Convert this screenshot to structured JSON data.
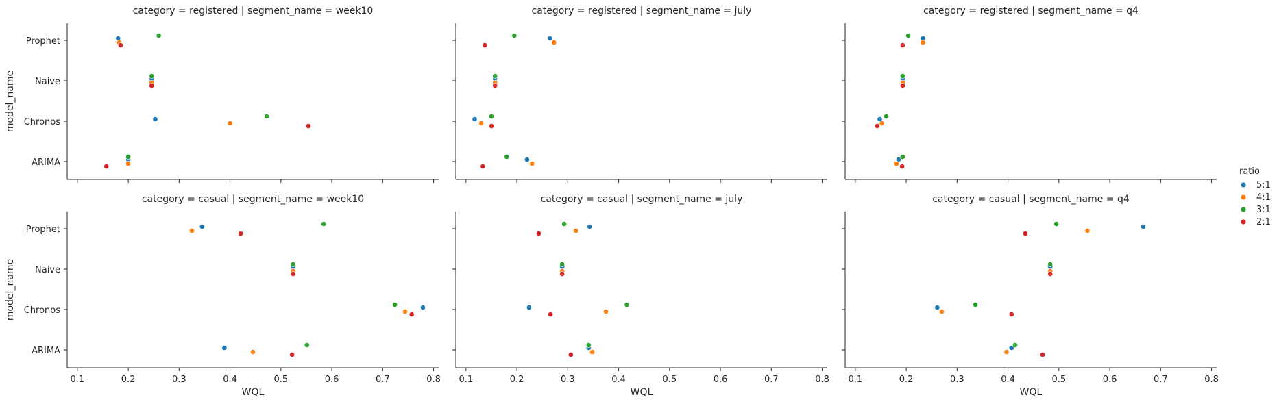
{
  "chart_data": {
    "type": "scatter",
    "layout": "facet-grid",
    "xlabel": "WQL",
    "ylabel": "model_name",
    "xlim": [
      0.08,
      0.81
    ],
    "xticks": [
      0.1,
      0.2,
      0.3,
      0.4,
      0.5,
      0.6,
      0.7,
      0.8
    ],
    "xtick_labels": [
      "0.1",
      "0.2",
      "0.3",
      "0.4",
      "0.5",
      "0.6",
      "0.7",
      "0.8"
    ],
    "categories": [
      "Prophet",
      "Naive",
      "Chronos",
      "ARIMA"
    ],
    "legend": {
      "title": "ratio",
      "placement": "right",
      "entries": [
        {
          "name": "5:1",
          "color": "#1f77b4"
        },
        {
          "name": "4:1",
          "color": "#ff7f0e"
        },
        {
          "name": "3:1",
          "color": "#2ca02c"
        },
        {
          "name": "2:1",
          "color": "#d62728"
        }
      ]
    },
    "panels": [
      {
        "title": "category = registered | segment_name = week10",
        "points": {
          "Prophet": {
            "5:1": 0.18,
            "4:1": 0.182,
            "3:1": 0.26,
            "2:1": 0.185
          },
          "Naive": {
            "5:1": 0.246,
            "4:1": 0.246,
            "3:1": 0.246,
            "2:1": 0.246
          },
          "Chronos": {
            "5:1": 0.253,
            "4:1": 0.4,
            "3:1": 0.472,
            "2:1": 0.554
          },
          "ARIMA": {
            "5:1": 0.2,
            "4:1": 0.2,
            "3:1": 0.2,
            "2:1": 0.157
          }
        }
      },
      {
        "title": "category = registered | segment_name = july",
        "points": {
          "Prophet": {
            "5:1": 0.265,
            "4:1": 0.273,
            "3:1": 0.195,
            "2:1": 0.137
          },
          "Naive": {
            "5:1": 0.157,
            "4:1": 0.157,
            "3:1": 0.157,
            "2:1": 0.157
          },
          "Chronos": {
            "5:1": 0.117,
            "4:1": 0.13,
            "3:1": 0.15,
            "2:1": 0.15
          },
          "ARIMA": {
            "5:1": 0.22,
            "4:1": 0.23,
            "3:1": 0.18,
            "2:1": 0.133
          }
        }
      },
      {
        "title": "category = registered | segment_name = q4",
        "points": {
          "Prophet": {
            "5:1": 0.233,
            "4:1": 0.233,
            "3:1": 0.204,
            "2:1": 0.193
          },
          "Naive": {
            "5:1": 0.193,
            "4:1": 0.193,
            "3:1": 0.193,
            "2:1": 0.193
          },
          "Chronos": {
            "5:1": 0.148,
            "4:1": 0.152,
            "3:1": 0.161,
            "2:1": 0.143
          },
          "ARIMA": {
            "5:1": 0.185,
            "4:1": 0.181,
            "3:1": 0.193,
            "2:1": 0.192
          }
        }
      },
      {
        "title": "category = casual | segment_name = week10",
        "points": {
          "Prophet": {
            "5:1": 0.345,
            "4:1": 0.325,
            "3:1": 0.584,
            "2:1": 0.421
          },
          "Naive": {
            "5:1": 0.524,
            "4:1": 0.524,
            "3:1": 0.524,
            "2:1": 0.524
          },
          "Chronos": {
            "5:1": 0.779,
            "4:1": 0.744,
            "3:1": 0.724,
            "2:1": 0.757
          },
          "ARIMA": {
            "5:1": 0.389,
            "4:1": 0.445,
            "3:1": 0.551,
            "2:1": 0.522
          }
        }
      },
      {
        "title": "category = casual | segment_name = july",
        "points": {
          "Prophet": {
            "5:1": 0.343,
            "4:1": 0.316,
            "3:1": 0.293,
            "2:1": 0.243
          },
          "Naive": {
            "5:1": 0.289,
            "4:1": 0.289,
            "3:1": 0.289,
            "2:1": 0.289
          },
          "Chronos": {
            "5:1": 0.224,
            "4:1": 0.375,
            "3:1": 0.416,
            "2:1": 0.266
          },
          "ARIMA": {
            "5:1": 0.341,
            "4:1": 0.348,
            "3:1": 0.341,
            "2:1": 0.306
          }
        }
      },
      {
        "title": "category = casual | segment_name = q4",
        "points": {
          "Prophet": {
            "5:1": 0.666,
            "4:1": 0.556,
            "3:1": 0.495,
            "2:1": 0.434
          },
          "Naive": {
            "5:1": 0.483,
            "4:1": 0.483,
            "3:1": 0.483,
            "2:1": 0.483
          },
          "Chronos": {
            "5:1": 0.261,
            "4:1": 0.27,
            "3:1": 0.336,
            "2:1": 0.407
          },
          "ARIMA": {
            "5:1": 0.407,
            "4:1": 0.397,
            "3:1": 0.414,
            "2:1": 0.468
          }
        }
      }
    ]
  }
}
